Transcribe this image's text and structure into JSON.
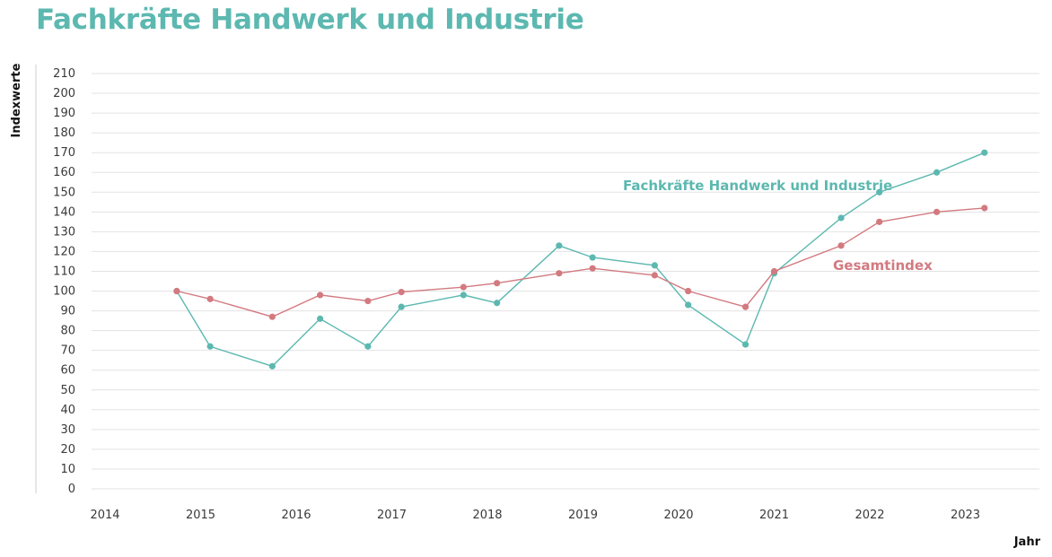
{
  "page": {
    "title": "Fachkräfte Handwerk und Industrie"
  },
  "chart_data": {
    "type": "line",
    "title": "Fachkräfte Handwerk und Industrie",
    "xlabel": "Jahr",
    "ylabel": "Indexwerte",
    "xlim": [
      2014,
      2024
    ],
    "ylim": [
      0,
      210
    ],
    "y_ticks": [
      0,
      10,
      20,
      30,
      40,
      50,
      60,
      70,
      80,
      90,
      100,
      110,
      120,
      130,
      140,
      150,
      160,
      170,
      180,
      190,
      200,
      210
    ],
    "x_ticks": [
      2014,
      2015,
      2016,
      2017,
      2018,
      2019,
      2020,
      2021,
      2022,
      2023
    ],
    "grid": true,
    "series": [
      {
        "name": "Fachkräfte Handwerk und Industrie",
        "color": "#5cb8b0",
        "x": [
          2014.75,
          2015.1,
          2015.75,
          2016.25,
          2016.75,
          2017.1,
          2017.75,
          2018.1,
          2018.75,
          2019.1,
          2019.75,
          2020.1,
          2020.7,
          2021.0,
          2021.7,
          2022.1,
          2022.7,
          2023.2
        ],
        "values": [
          100,
          72,
          62,
          86,
          72,
          92,
          98,
          94,
          123,
          117,
          113,
          93,
          73,
          109,
          137,
          150,
          160,
          170
        ]
      },
      {
        "name": "Gesamtindex",
        "color": "#d27a80",
        "x": [
          2014.75,
          2015.1,
          2015.75,
          2016.25,
          2016.75,
          2017.1,
          2017.75,
          2018.1,
          2018.75,
          2019.1,
          2019.75,
          2020.1,
          2020.7,
          2021.0,
          2021.7,
          2022.1,
          2022.7,
          2023.2
        ],
        "values": [
          100,
          96,
          87,
          98,
          95,
          99.5,
          102,
          104,
          109,
          111.5,
          108,
          100,
          92,
          110,
          123,
          135,
          140,
          142
        ]
      }
    ],
    "annotations": [
      {
        "text": "Fachkräfte Handwerk und Industrie",
        "series": 0
      },
      {
        "text": "Gesamtindex",
        "series": 1
      }
    ]
  }
}
